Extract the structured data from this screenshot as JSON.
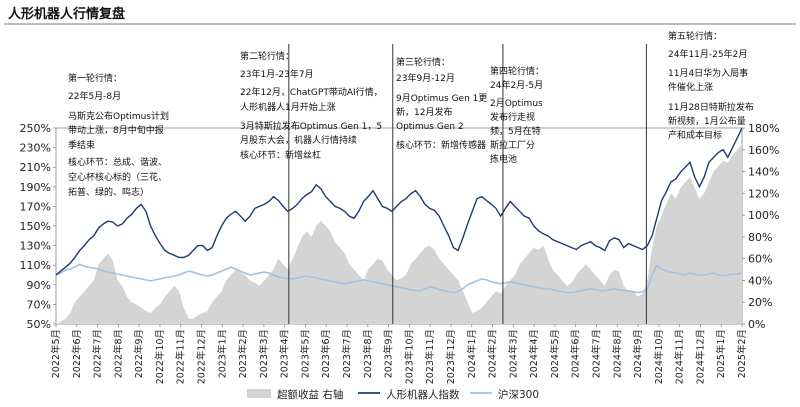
{
  "chart_data": {
    "type": "line",
    "title": "人形机器人行情复盘",
    "colors": {
      "index": "#1f3a6e",
      "hs300": "#9ec3e6",
      "excess": "#d4d4d4",
      "divider": "#333333"
    },
    "y_left": {
      "ticks": [
        "50%",
        "70%",
        "90%",
        "110%",
        "130%",
        "150%",
        "170%",
        "190%",
        "210%",
        "230%",
        "250%"
      ],
      "ylim": [
        50,
        250
      ]
    },
    "y_right": {
      "ticks": [
        "0%",
        "20%",
        "40%",
        "60%",
        "80%",
        "100%",
        "120%",
        "140%",
        "160%",
        "180%"
      ],
      "ylim": [
        0,
        180
      ]
    },
    "x_ticks": [
      "2022年5月",
      "2022年6月",
      "2022年7月",
      "2022年8月",
      "2022年9月",
      "2022年10月",
      "2022年11月",
      "2022年12月",
      "2023年1月",
      "2023年2月",
      "2023年3月",
      "2023年4月",
      "2023年5月",
      "2023年6月",
      "2023年7月",
      "2023年8月",
      "2023年9月",
      "2023年10月",
      "2023年11月",
      "2023年12月",
      "2024年1月",
      "2024年2月",
      "2024年3月",
      "2024年4月",
      "2024年5月",
      "2024年6月",
      "2024年7月",
      "2024年8月",
      "2024年9月",
      "2024年10月",
      "2024年11月",
      "2024年12月",
      "2025年1月",
      "2025年2月"
    ],
    "dividers": [
      11.2,
      16.2,
      21.5,
      28.4
    ],
    "series": [
      {
        "name": "超额收益 右轴",
        "values": [
          0,
          2,
          5,
          10,
          20,
          25,
          30,
          35,
          40,
          55,
          60,
          65,
          58,
          40,
          35,
          25,
          20,
          18,
          15,
          12,
          10,
          15,
          18,
          25,
          30,
          35,
          30,
          15,
          5,
          5,
          8,
          10,
          12,
          20,
          25,
          30,
          40,
          45,
          50,
          48,
          45,
          40,
          38,
          35,
          40,
          45,
          50,
          60,
          55,
          50,
          60,
          70,
          80,
          85,
          80,
          90,
          95,
          90,
          85,
          75,
          70,
          65,
          55,
          50,
          45,
          40,
          50,
          55,
          60,
          58,
          50,
          45,
          40,
          42,
          45,
          55,
          60,
          65,
          70,
          72,
          68,
          60,
          55,
          50,
          45,
          40,
          30,
          20,
          10,
          12,
          15,
          20,
          25,
          30,
          28,
          35,
          40,
          45,
          55,
          60,
          65,
          70,
          68,
          72,
          60,
          50,
          45,
          40,
          35,
          38,
          45,
          50,
          55,
          50,
          45,
          40,
          35,
          45,
          50,
          48,
          35,
          30,
          30,
          25,
          28,
          40,
          70,
          90,
          100,
          110,
          120,
          115,
          125,
          130,
          135,
          125,
          115,
          120,
          130,
          140,
          145,
          150,
          148,
          155,
          160,
          165
        ]
      },
      {
        "name": "人形机器人指数",
        "values": [
          100,
          104,
          108,
          112,
          118,
          125,
          130,
          136,
          140,
          148,
          152,
          155,
          154,
          150,
          152,
          158,
          162,
          168,
          172,
          165,
          150,
          140,
          132,
          125,
          122,
          120,
          118,
          118,
          120,
          125,
          130,
          130,
          125,
          128,
          140,
          150,
          158,
          162,
          165,
          160,
          155,
          160,
          168,
          170,
          172,
          175,
          180,
          176,
          170,
          165,
          168,
          172,
          178,
          182,
          185,
          192,
          188,
          180,
          175,
          170,
          168,
          165,
          160,
          158,
          165,
          175,
          180,
          186,
          178,
          170,
          168,
          165,
          170,
          175,
          178,
          183,
          186,
          180,
          172,
          168,
          166,
          160,
          150,
          140,
          128,
          125,
          138,
          152,
          165,
          178,
          180,
          176,
          172,
          168,
          160,
          168,
          175,
          170,
          165,
          160,
          158,
          150,
          145,
          142,
          140,
          136,
          134,
          132,
          130,
          128,
          126,
          130,
          132,
          134,
          130,
          128,
          125,
          135,
          138,
          136,
          128,
          132,
          130,
          128,
          126,
          130,
          140,
          158,
          176,
          185,
          195,
          198,
          205,
          210,
          215,
          200,
          190,
          200,
          215,
          220,
          225,
          228,
          220,
          230,
          240,
          250
        ]
      },
      {
        "name": "沪深300",
        "values": [
          100,
          102,
          105,
          106,
          108,
          111,
          109,
          108,
          107,
          106,
          104,
          103,
          102,
          101,
          100,
          99,
          98,
          97,
          96,
          95,
          94,
          95,
          96,
          97,
          98,
          99,
          100,
          102,
          104,
          103,
          101,
          100,
          99,
          100,
          102,
          104,
          106,
          108,
          106,
          104,
          102,
          100,
          101,
          102,
          103,
          102,
          100,
          98,
          97,
          96,
          96,
          97,
          98,
          99,
          98,
          97,
          96,
          95,
          94,
          93,
          92,
          91,
          92,
          93,
          94,
          95,
          94,
          93,
          92,
          91,
          90,
          89,
          88,
          87,
          86,
          85,
          84,
          84,
          86,
          88,
          87,
          85,
          84,
          83,
          82,
          83,
          86,
          90,
          92,
          94,
          96,
          95,
          93,
          92,
          91,
          92,
          93,
          92,
          91,
          90,
          89,
          88,
          87,
          86,
          86,
          85,
          84,
          83,
          82,
          82,
          83,
          84,
          85,
          86,
          85,
          84,
          84,
          85,
          86,
          85,
          84,
          84,
          83,
          82,
          83,
          86,
          100,
          110,
          106,
          104,
          103,
          102,
          101,
          100,
          102,
          101,
          100,
          100,
          101,
          102,
          100,
          99,
          100,
          101,
          101,
          102
        ]
      }
    ],
    "legend": {
      "position": "bottom"
    },
    "annotations": [
      {
        "lines": [
          "第一轮行情：",
          "22年5月-8月",
          "马斯克公布Optimus计划",
          "带动上涨，8月中旬中报",
          "季结束",
          "核心环节：总成、谐波、",
          "空心杯核心标的（三花、",
          "拓普、绿的、鸣志）"
        ]
      },
      {
        "lines": [
          "第二轮行情：",
          "23年1月-23年7月",
          "22年12月，ChatGPT带动AI行情，",
          "人形机器人1月开始上涨",
          "3月特斯拉发布Optimus Gen 1，5",
          "月股东大会，机器人行情持续",
          "核心环节：新增丝杠"
        ]
      },
      {
        "lines": [
          "第三轮行情：",
          "23年9月-12月",
          "9月Optimus Gen 1更",
          "新，12月发布",
          "Optimus Gen 2",
          "核心环节：新增传感器"
        ]
      },
      {
        "lines": [
          "第四轮行情：",
          "24年2月-5月",
          "2月Optimus",
          "发布行走视",
          "频，5月在特",
          "斯拉工厂分",
          "拣电池"
        ]
      },
      {
        "lines": [
          "第五轮行情：",
          "24年11月-25年2月",
          "11月4日华为入局事",
          "件催化上涨",
          "11月28日特斯拉发布",
          "新视频，1月公布量",
          "产和成本目标"
        ]
      }
    ]
  }
}
